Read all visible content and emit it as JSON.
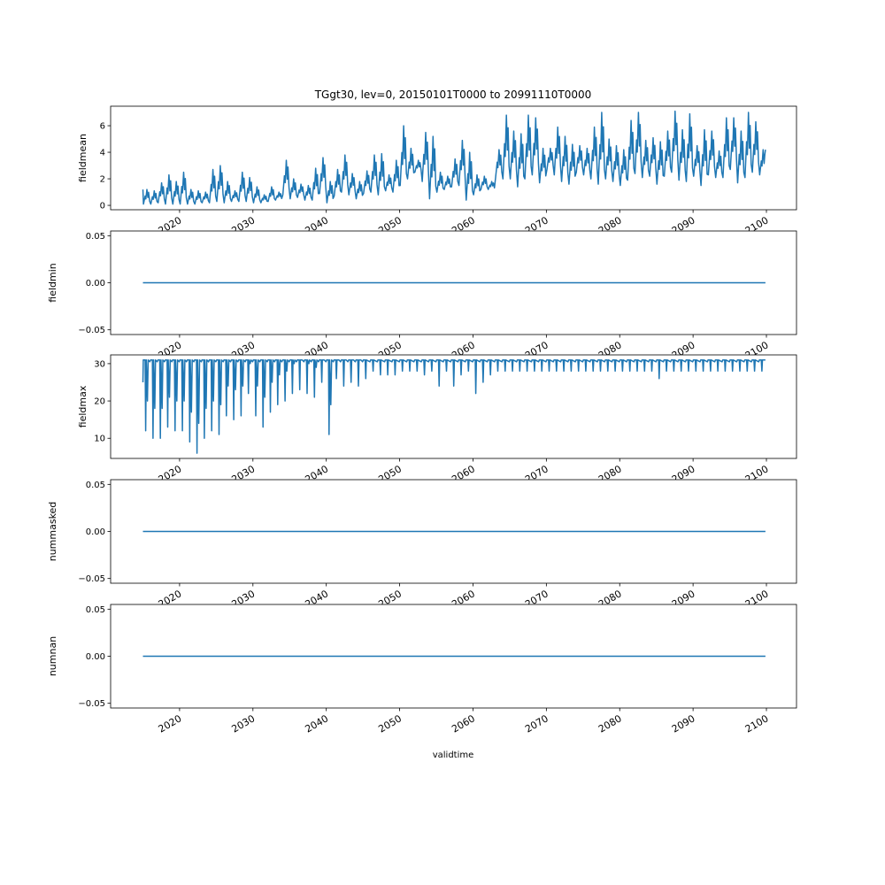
{
  "chart_data": {
    "type": "line",
    "title": "TGgt30, lev=0, 20150101T0000 to 20991110T0000",
    "xlabel": "validtime",
    "x_ticks": [
      "2020",
      "2030",
      "2040",
      "2050",
      "2060",
      "2070",
      "2080",
      "2090",
      "2100"
    ],
    "xlim": [
      2010.6,
      2104.1
    ],
    "x_start": 2015.0,
    "x_end": 2099.86,
    "line_color": "#1f77b4",
    "grid": false,
    "panels": [
      {
        "ylabel": "fieldmean",
        "ylim": [
          -0.33,
          7.47
        ],
        "y_ticks": [
          0,
          2,
          4,
          6
        ],
        "y_tick_labels": [
          "0",
          "2",
          "4",
          "6"
        ],
        "note": "approximate annual peak / trough per year 2015-2099",
        "annual_peak": [
          1.2,
          1.1,
          1.7,
          2.3,
          1.8,
          2.5,
          1.2,
          1.1,
          1.0,
          2.7,
          3.0,
          1.8,
          1.1,
          2.5,
          2.1,
          1.4,
          0.8,
          1.4,
          1.0,
          3.4,
          2.0,
          1.6,
          1.5,
          2.8,
          3.6,
          1.8,
          2.7,
          3.8,
          2.4,
          1.8,
          2.6,
          3.8,
          3.9,
          2.3,
          3.4,
          6.0,
          4.3,
          3.4,
          5.5,
          5.2,
          2.5,
          2.2,
          3.5,
          4.9,
          4.0,
          2.3,
          2.2,
          1.8,
          4.2,
          6.8,
          5.6,
          5.4,
          6.8,
          6.6,
          4.3,
          4.3,
          5.9,
          5.2,
          4.6,
          4.5,
          4.3,
          5.9,
          7.0,
          5.0,
          4.5,
          4.2,
          6.4,
          7.0,
          4.9,
          5.1,
          4.8,
          5.6,
          7.1,
          5.7,
          6.9,
          4.5,
          5.7,
          5.6,
          4.1,
          6.6,
          6.6,
          5.6,
          7.0,
          6.3,
          4.2
        ],
        "annual_trough": [
          0.1,
          0.1,
          0.2,
          0.1,
          0.1,
          0.1,
          0.1,
          0.1,
          0.2,
          0.2,
          0.3,
          0.2,
          0.3,
          0.3,
          0.3,
          0.2,
          0.2,
          0.3,
          0.4,
          0.8,
          0.5,
          0.6,
          0.4,
          0.4,
          0.9,
          0.2,
          0.7,
          1.0,
          0.8,
          0.5,
          0.9,
          1.0,
          0.8,
          1.1,
          1.0,
          1.5,
          2.0,
          2.5,
          1.8,
          0.5,
          1.0,
          1.2,
          1.4,
          1.5,
          0.4,
          0.8,
          1.2,
          1.2,
          2.1,
          2.0,
          2.0,
          1.4,
          2.0,
          2.3,
          1.7,
          2.7,
          2.3,
          1.8,
          1.6,
          2.5,
          2.3,
          2.0,
          1.6,
          2.0,
          1.8,
          1.5,
          1.9,
          2.4,
          2.1,
          2.2,
          1.6,
          2.2,
          2.5,
          1.9,
          1.8,
          2.2,
          1.5,
          2.3,
          2.1,
          2.1,
          2.7,
          1.7,
          2.1,
          2.5,
          2.3
        ],
        "first_value": 1.2,
        "last_value": 4.2
      },
      {
        "ylabel": "fieldmin",
        "ylim": [
          -0.055,
          0.055
        ],
        "y_ticks": [
          -0.05,
          0,
          0.05
        ],
        "y_tick_labels": [
          "−0.05",
          "0.00",
          "0.05"
        ],
        "constant": 0
      },
      {
        "ylabel": "fieldmax",
        "ylim": [
          4.6,
          32.35
        ],
        "y_ticks": [
          10,
          20,
          30
        ],
        "y_tick_labels": [
          "10",
          "20",
          "30"
        ],
        "note": "values mostly 31 with one annual dip to the listed minimum, 2015-2099",
        "annual_max": 31,
        "annual_min": [
          12,
          10,
          10,
          13,
          12,
          12,
          9,
          6,
          10,
          12,
          11,
          16,
          15,
          16,
          22,
          16,
          13,
          17,
          19,
          20,
          22,
          23,
          22,
          21,
          25,
          11,
          26,
          24,
          25,
          24,
          26,
          28,
          27,
          27,
          27,
          28,
          28,
          28,
          27,
          28,
          24,
          28,
          24,
          27,
          28,
          22,
          25,
          27,
          28,
          28,
          28,
          28,
          28,
          28,
          28,
          28,
          28,
          28,
          28,
          28,
          28,
          28,
          28,
          28,
          28,
          28,
          28,
          28,
          28,
          28,
          26,
          28,
          28,
          28,
          28,
          28,
          28,
          28,
          28,
          28,
          28,
          28,
          28,
          28,
          28
        ],
        "first_value": 25
      },
      {
        "ylabel": "nummasked",
        "ylim": [
          -0.055,
          0.055
        ],
        "y_ticks": [
          -0.05,
          0,
          0.05
        ],
        "y_tick_labels": [
          "−0.05",
          "0.00",
          "0.05"
        ],
        "constant": 0
      },
      {
        "ylabel": "numnan",
        "ylim": [
          -0.055,
          0.055
        ],
        "y_ticks": [
          -0.05,
          0,
          0.05
        ],
        "y_tick_labels": [
          "−0.05",
          "0.00",
          "0.05"
        ],
        "constant": 0
      }
    ]
  }
}
